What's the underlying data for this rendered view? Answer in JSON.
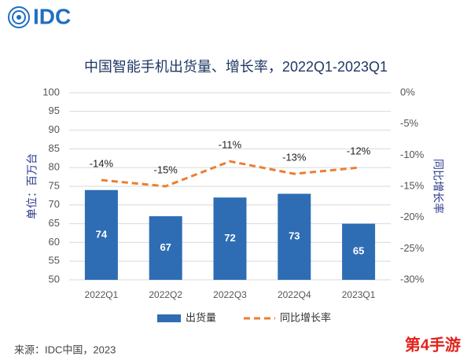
{
  "logo": "IDC",
  "source": "来源：IDC中国，2023",
  "watermark": "第4手游",
  "chart_data": {
    "type": "bar-line",
    "title": "中国智能手机出货量、增长率，2022Q1-2023Q1",
    "y_label": "单位：百万台",
    "y2_label": "同比增长率",
    "categories": [
      "2022Q1",
      "2022Q2",
      "2022Q3",
      "2022Q4",
      "2023Q1"
    ],
    "series": [
      {
        "name": "出货量",
        "color": "#2e6db4",
        "values": [
          74,
          67,
          72,
          73,
          65
        ]
      },
      {
        "name": "同比增长率",
        "color": "#ed7d31",
        "axis": "y2",
        "values": [
          -14,
          -15,
          -11,
          -13,
          -12
        ],
        "value_labels": [
          "-14%",
          "-15%",
          "-11%",
          "-13%",
          "-12%"
        ]
      }
    ],
    "ylim": [
      50,
      100
    ],
    "yticks": [
      50,
      55,
      60,
      65,
      70,
      75,
      80,
      85,
      90,
      95,
      100
    ],
    "y2lim": [
      -30,
      0
    ],
    "y2ticks": [
      {
        "value": -30,
        "label": "-30%"
      },
      {
        "value": -25,
        "label": "-25%"
      },
      {
        "value": -20,
        "label": "-20%"
      },
      {
        "value": -15,
        "label": "-15%"
      },
      {
        "value": -10,
        "label": "-10%"
      },
      {
        "value": -5,
        "label": "-5%"
      },
      {
        "value": 0,
        "label": "0%"
      }
    ],
    "grid": true
  }
}
